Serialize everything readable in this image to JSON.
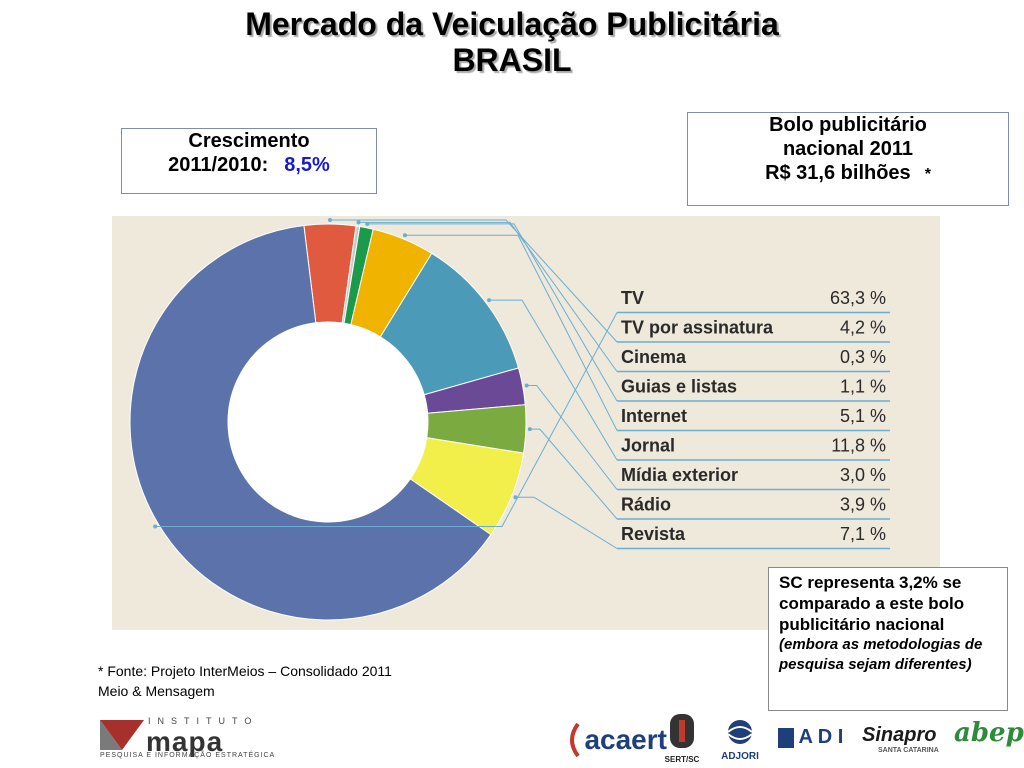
{
  "title_line1": "Mercado da Veiculação Publicitária",
  "title_line2": "BRASIL",
  "growth": {
    "label_line1": "Crescimento",
    "label_line2": "2011/2010:",
    "value": "8,5%"
  },
  "bolo": {
    "line1": "Bolo publicitário",
    "line2": "nacional 2011",
    "line3": "R$ 31,6 bilhões",
    "asterisk": "*"
  },
  "chart_data": {
    "type": "pie",
    "variant": "donut",
    "categories": [
      "TV",
      "TV por assinatura",
      "Cinema",
      "Guias e listas",
      "Internet",
      "Jornal",
      "Mídia exterior",
      "Rádio",
      "Revista"
    ],
    "values": [
      63.3,
      4.2,
      0.3,
      1.1,
      5.1,
      11.8,
      3.0,
      3.9,
      7.1
    ],
    "value_labels": [
      "63,3 %",
      "4,2 %",
      "0,3 %",
      "1,1 %",
      "5,1 %",
      "11,8 %",
      "3,0 %",
      "3,9 %",
      "7,1 %"
    ],
    "colors": [
      "#5b72aa",
      "#e05a40",
      "#c8c8c8",
      "#1a9a4a",
      "#f0b400",
      "#4a9ab8",
      "#6a4a96",
      "#7aaa40",
      "#f2ee4a"
    ],
    "legend_placement": "right"
  },
  "sc_note": {
    "main": "SC representa  3,2% se comparado a este bolo publicitário nacional",
    "sub": "(embora as metodologias de pesquisa sejam diferentes)"
  },
  "fonte": {
    "line1": "*  Fonte: Projeto InterMeios – Consolidado 2011",
    "line2": "Meio & Mensagem"
  },
  "logos": {
    "mapa": {
      "inst": "INSTITUTO",
      "word": "mapa",
      "tag": "PESQUISA E INFORMAÇÃO ESTRATÉGICA"
    },
    "acaert": "acaert",
    "sert": "SERT/SC",
    "adjori": "ADJORI",
    "adi": "A D I",
    "sinapro": "Sinapro",
    "sinapro_sub": "SANTA CATARINA",
    "abep": "abep"
  }
}
